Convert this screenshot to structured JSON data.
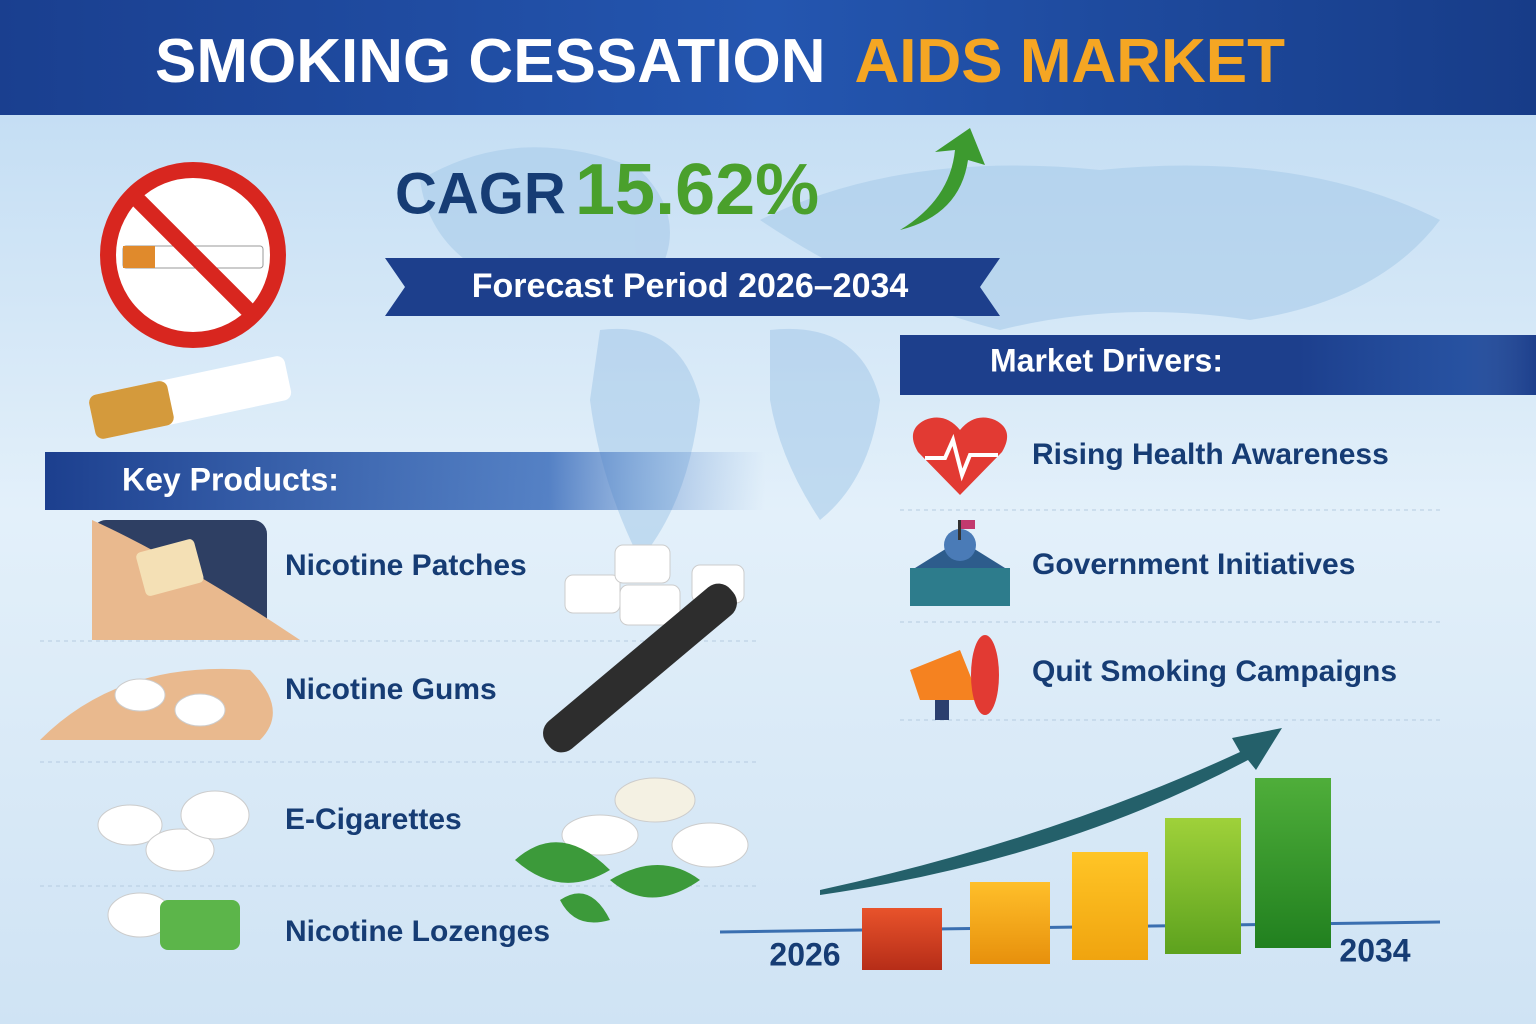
{
  "header": {
    "title_main": "SMOKING CESSATION",
    "title_highlight": "AIDS MARKET"
  },
  "growth": {
    "label": "CAGR",
    "value": "15.62%",
    "period": "Forecast Period 2026–2034"
  },
  "key_products": {
    "heading": "Key Products:",
    "items": [
      "Nicotine Patches",
      "Nicotine Gums",
      "E-Cigarettes",
      "Nicotine Lozenges"
    ]
  },
  "market_drivers": {
    "heading": "Market Drivers:",
    "items": [
      "Rising Health Awareness",
      "Government Initiatives",
      "Quit Smoking Campaigns"
    ]
  },
  "growth_chart": {
    "start_label": "2026",
    "end_label": "2034"
  }
}
